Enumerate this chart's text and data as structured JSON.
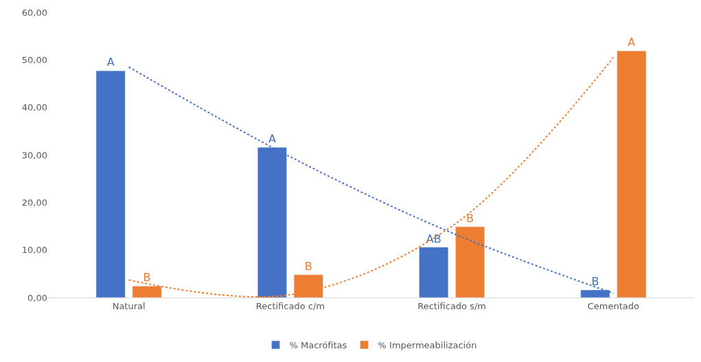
{
  "chart_data": {
    "type": "bar",
    "categories": [
      "Natural",
      "Rectificado c/m",
      "Rectificado s/m",
      "Cementado"
    ],
    "series": [
      {
        "name": "% Macrófitas",
        "color": "#4472c4",
        "values": [
          47.7,
          31.6,
          10.6,
          1.6
        ],
        "value_labels": [
          "A",
          "A",
          "AB",
          "B"
        ]
      },
      {
        "name": "% Impermeabilización",
        "color": "#ed7d31",
        "values": [
          2.4,
          4.8,
          14.9,
          51.9
        ],
        "value_labels": [
          "B",
          "B",
          "B",
          "A"
        ]
      },
      {
        "type": "line",
        "color": "#4472c4",
        "line_style": "dotted",
        "x": [
          "Natural",
          "Rectificado c/m",
          "Rectificado s/m",
          "Cementado"
        ],
        "values": [
          48.5,
          29.6,
          13.6,
          0.9
        ]
      },
      {
        "type": "line",
        "color": "#ed7d31",
        "line_style": "dotted",
        "x": [
          "Natural",
          "Rectificado c/m",
          "Rectificado s/m",
          "Cementado"
        ],
        "values": [
          3.7,
          0.6,
          15.0,
          50.5
        ]
      }
    ],
    "ylim": [
      0,
      60
    ],
    "yticks": [
      {
        "value": 0,
        "label": "0,00"
      },
      {
        "value": 10,
        "label": "10,00"
      },
      {
        "value": 20,
        "label": "20,00"
      },
      {
        "value": 30,
        "label": "30,00"
      },
      {
        "value": 40,
        "label": "40,00"
      },
      {
        "value": 50,
        "label": "50,00"
      },
      {
        "value": 60,
        "label": "60,00"
      }
    ],
    "legend": "bottom"
  }
}
